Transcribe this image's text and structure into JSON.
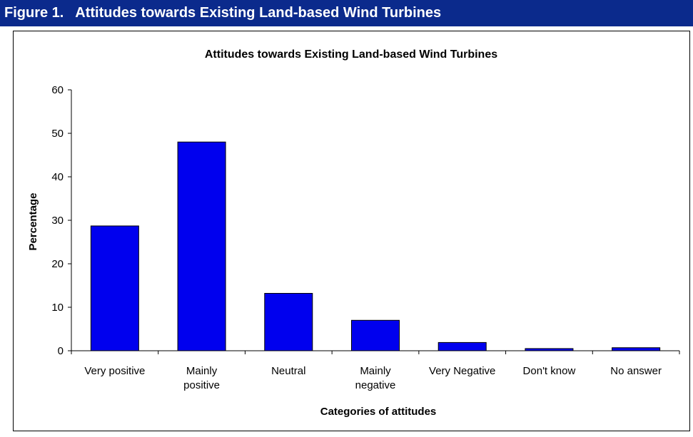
{
  "figure_caption": "Figure 1.   Attitudes towards Existing Land-based Wind Turbines",
  "colors": {
    "header_bg": "#0b2a8c",
    "header_text": "#ffffff",
    "bar_fill": "#0000ee",
    "bar_stroke": "#000000"
  },
  "chart_data": {
    "type": "bar",
    "title": "Attitudes towards Existing Land-based Wind Turbines",
    "xlabel": "Categories of attitudes",
    "ylabel": "Percentage",
    "ylim": [
      0,
      60
    ],
    "yticks": [
      "0",
      "10",
      "20",
      "30",
      "40",
      "50",
      "60"
    ],
    "categories": [
      [
        "Very positive"
      ],
      [
        "Mainly",
        "positive"
      ],
      [
        "Neutral"
      ],
      [
        "Mainly",
        "negative"
      ],
      [
        "Very Negative"
      ],
      [
        "Don't know"
      ],
      [
        "No answer"
      ]
    ],
    "values": [
      28.7,
      48,
      13.2,
      7,
      1.9,
      0.5,
      0.7
    ],
    "grid": false,
    "legend": "none"
  }
}
